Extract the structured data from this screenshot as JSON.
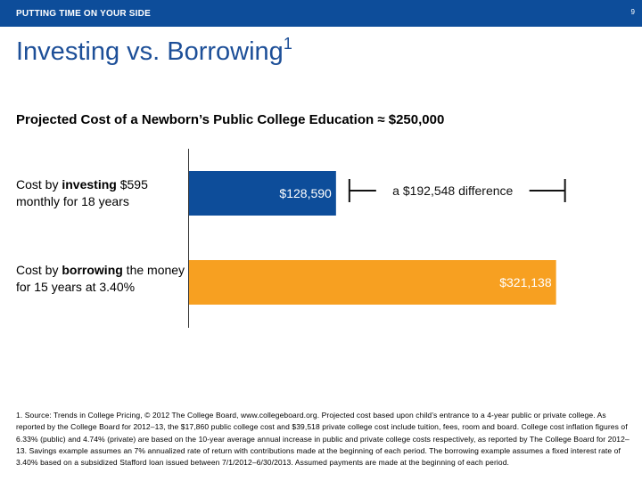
{
  "header": {
    "section_label": "PUTTING TIME ON YOUR SIDE",
    "page_number": "9",
    "accent_color": "#0d4d9a"
  },
  "title": {
    "text": "Investing vs. Borrowing",
    "superscript": "1"
  },
  "subtitle": "Projected Cost of a Newborn’s Public College Education ≈ $250,000",
  "rows": [
    {
      "prefix": "Cost by ",
      "emphasis": "investing",
      "suffix": " $595 monthly for 18 years"
    },
    {
      "prefix": "Cost by ",
      "emphasis": "borrowing",
      "suffix": " the money for 15 years at 3.40%"
    }
  ],
  "chart_data": {
    "type": "bar",
    "orientation": "horizontal",
    "categories": [
      "investing",
      "borrowing"
    ],
    "values": [
      128590,
      321138
    ],
    "data_labels": [
      "$128,590",
      "$321,138"
    ],
    "colors": [
      "#0d4d9a",
      "#f7a021"
    ],
    "xlim": [
      0,
      330000
    ],
    "difference": {
      "label": "a $192,548 difference",
      "from": 128590,
      "to": 321138
    },
    "grid": false,
    "legend": "none"
  },
  "footnote": "1. Source: Trends in College Pricing, © 2012 The College Board, www.collegeboard.org. Projected cost based upon child’s entrance to a 4-year public or private college. As reported by the College Board for 2012–13, the $17,860 public college cost and $39,518 private college cost include tuition, fees, room and board. College cost inflation figures of 6.33% (public) and 4.74% (private) are based on the 10-year average annual increase in public and private college costs respectively, as reported by The College Board for 2012–13. Savings example assumes an 7% annualized rate of return with contributions made at the beginning of each period. The borrowing example assumes a fixed interest rate of 3.40% based on a subsidized Stafford loan issued between 7/1/2012–6/30/2013. Assumed payments are made at the beginning of each period."
}
